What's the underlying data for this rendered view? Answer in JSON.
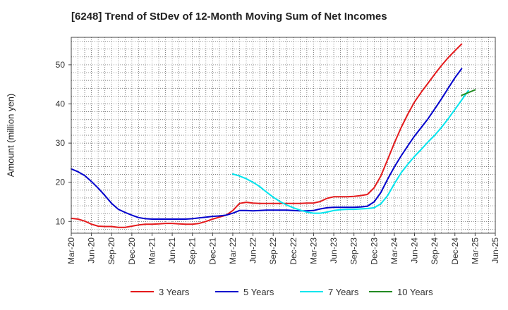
{
  "chart_data": {
    "type": "line",
    "title": "[6248]  Trend of StDev of 12-Month Moving Sum of Net Incomes",
    "ylabel": "Amount (million yen)",
    "xlabel": "",
    "ylim": [
      7,
      57
    ],
    "yticks": [
      10,
      20,
      30,
      40,
      50
    ],
    "xticks": [
      "Mar-20",
      "Jun-20",
      "Sep-20",
      "Dec-20",
      "Mar-21",
      "Jun-21",
      "Sep-21",
      "Dec-21",
      "Mar-22",
      "Jun-22",
      "Sep-22",
      "Dec-22",
      "Mar-23",
      "Jun-23",
      "Sep-23",
      "Dec-23",
      "Mar-24",
      "Jun-24",
      "Sep-24",
      "Dec-24",
      "Mar-25",
      "Jun-25"
    ],
    "grid": true,
    "legend_position": "bottom",
    "series": [
      {
        "name": "3 Years",
        "color": "#e41a1c",
        "start": "Mar-20",
        "values": [
          10.8,
          10.6,
          10.1,
          9.3,
          8.8,
          8.7,
          8.7,
          8.5,
          8.5,
          8.8,
          9.1,
          9.3,
          9.3,
          9.4,
          9.5,
          9.5,
          9.4,
          9.3,
          9.3,
          9.5,
          10.0,
          10.6,
          11.1,
          11.6,
          12.8,
          14.6,
          14.9,
          14.7,
          14.6,
          14.6,
          14.6,
          14.6,
          14.6,
          14.6,
          14.6,
          14.7,
          14.7,
          15.1,
          15.9,
          16.3,
          16.3,
          16.3,
          16.4,
          16.6,
          16.9,
          18.6,
          21.6,
          25.8,
          30.0,
          33.9,
          37.4,
          40.5,
          43.0,
          45.3,
          47.6,
          49.8,
          51.8,
          53.6,
          55.3
        ]
      },
      {
        "name": "5 Years",
        "color": "#0000cd",
        "start": "Mar-20",
        "values": [
          23.4,
          22.7,
          21.7,
          20.2,
          18.5,
          16.6,
          14.6,
          13.1,
          12.3,
          11.6,
          11.0,
          10.7,
          10.6,
          10.6,
          10.6,
          10.6,
          10.6,
          10.6,
          10.7,
          10.9,
          11.1,
          11.3,
          11.4,
          11.6,
          12.1,
          12.8,
          12.8,
          12.7,
          12.8,
          12.9,
          12.9,
          12.9,
          12.9,
          12.8,
          12.7,
          12.7,
          12.8,
          13.2,
          13.5,
          13.6,
          13.6,
          13.6,
          13.6,
          13.7,
          13.9,
          15.0,
          17.4,
          20.8,
          23.9,
          26.7,
          29.3,
          31.8,
          34.0,
          36.2,
          38.7,
          41.3,
          44.0,
          46.7,
          49.0
        ]
      },
      {
        "name": "7 Years",
        "color": "#00e5ee",
        "start": "Mar-22",
        "values": [
          22.1,
          21.6,
          20.9,
          20.0,
          18.9,
          17.5,
          16.2,
          15.1,
          14.2,
          13.5,
          12.9,
          12.4,
          12.1,
          12.1,
          12.4,
          12.8,
          13.0,
          13.1,
          13.1,
          13.2,
          13.3,
          13.5,
          14.5,
          16.6,
          19.6,
          22.4,
          24.6,
          26.6,
          28.4,
          30.3,
          32.0,
          34.0,
          36.2,
          38.6,
          41.0,
          43.4
        ]
      },
      {
        "name": "10 Years",
        "color": "#228b22",
        "start": "Jan-25",
        "values": [
          42.2,
          42.9,
          43.6
        ]
      }
    ]
  }
}
